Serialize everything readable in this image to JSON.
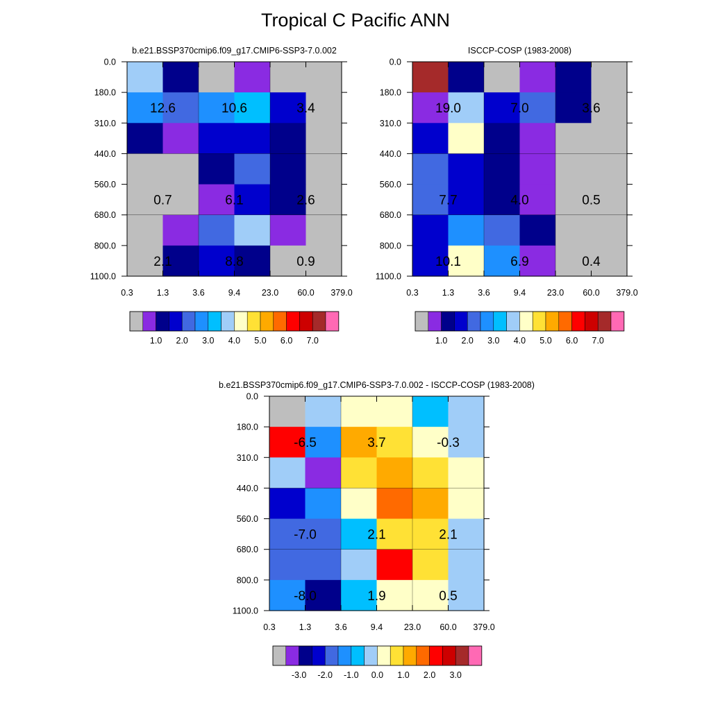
{
  "figure": {
    "title": "Tropical C Pacific ANN"
  },
  "colors": {
    "abs_palette": [
      "#bebebe",
      "#8a2be2",
      "#00008b",
      "#0000cd",
      "#4169e1",
      "#1e90ff",
      "#00bfff",
      "#a0cdf8",
      "#ffffc8",
      "#ffe135",
      "#ffaa00",
      "#ff6a00",
      "#ff0000",
      "#cd0000",
      "#a52a2a",
      "#ff69b4"
    ],
    "diff_palette": [
      "#bebebe",
      "#8a2be2",
      "#00008b",
      "#0000cd",
      "#4169e1",
      "#1e90ff",
      "#00bfff",
      "#a0cdf8",
      "#ffffc8",
      "#ffe135",
      "#ffaa00",
      "#ff6a00",
      "#ff0000",
      "#cd0000",
      "#a52a2a",
      "#ff69b4"
    ]
  },
  "chart_data": [
    {
      "type": "heatmap",
      "id": "model",
      "title": "b.e21.BSSP370cmip6.f09_g17.CMIP6-SSP3-7.0.002",
      "x_ticks": [
        "0.3",
        "1.3",
        "3.6",
        "9.4",
        "23.0",
        "60.0",
        "379.0"
      ],
      "y_ticks": [
        "0.0",
        "180.0",
        "310.0",
        "440.0",
        "560.0",
        "680.0",
        "800.0",
        "1100.0"
      ],
      "xlabel": "",
      "ylabel": "",
      "cell_color_index": [
        [
          7,
          2,
          0,
          1,
          0,
          0
        ],
        [
          5,
          4,
          5,
          6,
          3,
          0
        ],
        [
          2,
          1,
          3,
          3,
          2,
          0
        ],
        [
          0,
          0,
          2,
          4,
          2,
          0
        ],
        [
          0,
          0,
          1,
          3,
          2,
          0
        ],
        [
          0,
          1,
          4,
          7,
          1,
          0
        ],
        [
          0,
          2,
          3,
          2,
          0,
          0
        ]
      ],
      "annotations": [
        {
          "row": 1,
          "col": 0,
          "text": "12.6"
        },
        {
          "row": 1,
          "col": 2,
          "text": "10.6"
        },
        {
          "row": 1,
          "col": 4,
          "text": "3.4"
        },
        {
          "row": 4,
          "col": 0,
          "text": "0.7"
        },
        {
          "row": 4,
          "col": 2,
          "text": "6.1"
        },
        {
          "row": 4,
          "col": 4,
          "text": "2.6"
        },
        {
          "row": 6,
          "col": 0,
          "text": "2.1"
        },
        {
          "row": 6,
          "col": 2,
          "text": "8.8"
        },
        {
          "row": 6,
          "col": 4,
          "text": "0.9"
        }
      ],
      "colorbar": {
        "labels": [
          "1.0",
          "2.0",
          "3.0",
          "4.0",
          "5.0",
          "6.0",
          "7.0"
        ],
        "boxes": 16
      }
    },
    {
      "type": "heatmap",
      "id": "obs",
      "title": "ISCCP-COSP (1983-2008)",
      "x_ticks": [
        "0.3",
        "1.3",
        "3.6",
        "9.4",
        "23.0",
        "60.0",
        "379.0"
      ],
      "y_ticks": [
        "0.0",
        "180.0",
        "310.0",
        "440.0",
        "560.0",
        "680.0",
        "800.0",
        "1100.0"
      ],
      "xlabel": "",
      "ylabel": "",
      "cell_color_index": [
        [
          14,
          2,
          0,
          1,
          2,
          0
        ],
        [
          1,
          7,
          3,
          4,
          2,
          0
        ],
        [
          3,
          8,
          2,
          1,
          0,
          0
        ],
        [
          4,
          3,
          2,
          1,
          0,
          0
        ],
        [
          4,
          3,
          2,
          1,
          0,
          0
        ],
        [
          3,
          5,
          4,
          2,
          0,
          0
        ],
        [
          3,
          8,
          5,
          1,
          0,
          0
        ]
      ],
      "annotations": [
        {
          "row": 1,
          "col": 0,
          "text": "19.0"
        },
        {
          "row": 1,
          "col": 2,
          "text": "7.0"
        },
        {
          "row": 1,
          "col": 4,
          "text": "3.6"
        },
        {
          "row": 4,
          "col": 0,
          "text": "7.7"
        },
        {
          "row": 4,
          "col": 2,
          "text": "4.0"
        },
        {
          "row": 4,
          "col": 4,
          "text": "0.5"
        },
        {
          "row": 6,
          "col": 0,
          "text": "10.1"
        },
        {
          "row": 6,
          "col": 2,
          "text": "6.9"
        },
        {
          "row": 6,
          "col": 4,
          "text": "0.4"
        }
      ],
      "colorbar": {
        "labels": [
          "1.0",
          "2.0",
          "3.0",
          "4.0",
          "5.0",
          "6.0",
          "7.0"
        ],
        "boxes": 16
      }
    },
    {
      "type": "heatmap",
      "id": "diff",
      "title": "b.e21.BSSP370cmip6.f09_g17.CMIP6-SSP3-7.0.002 - ISCCP-COSP (1983-2008)",
      "x_ticks": [
        "0.3",
        "1.3",
        "3.6",
        "9.4",
        "23.0",
        "60.0",
        "379.0"
      ],
      "y_ticks": [
        "0.0",
        "180.0",
        "310.0",
        "440.0",
        "560.0",
        "680.0",
        "800.0",
        "1100.0"
      ],
      "xlabel": "",
      "ylabel": "",
      "cell_color_index": [
        [
          0,
          7,
          8,
          8,
          6,
          7
        ],
        [
          12,
          5,
          10,
          9,
          8,
          7
        ],
        [
          7,
          1,
          9,
          10,
          9,
          8
        ],
        [
          3,
          5,
          8,
          11,
          10,
          8
        ],
        [
          4,
          4,
          6,
          9,
          9,
          7
        ],
        [
          4,
          4,
          7,
          12,
          9,
          7
        ],
        [
          5,
          2,
          6,
          8,
          8,
          7
        ]
      ],
      "annotations": [
        {
          "row": 1,
          "col": 0,
          "text": "-6.5"
        },
        {
          "row": 1,
          "col": 2,
          "text": "3.7"
        },
        {
          "row": 1,
          "col": 4,
          "text": "-0.3"
        },
        {
          "row": 4,
          "col": 0,
          "text": "-7.0"
        },
        {
          "row": 4,
          "col": 2,
          "text": "2.1"
        },
        {
          "row": 4,
          "col": 4,
          "text": "2.1"
        },
        {
          "row": 6,
          "col": 0,
          "text": "-8.0"
        },
        {
          "row": 6,
          "col": 2,
          "text": "1.9"
        },
        {
          "row": 6,
          "col": 4,
          "text": "0.5"
        }
      ],
      "colorbar": {
        "labels": [
          "-3.0",
          "-2.0",
          "-1.0",
          "0.0",
          "1.0",
          "2.0",
          "3.0"
        ],
        "boxes": 16
      }
    }
  ]
}
